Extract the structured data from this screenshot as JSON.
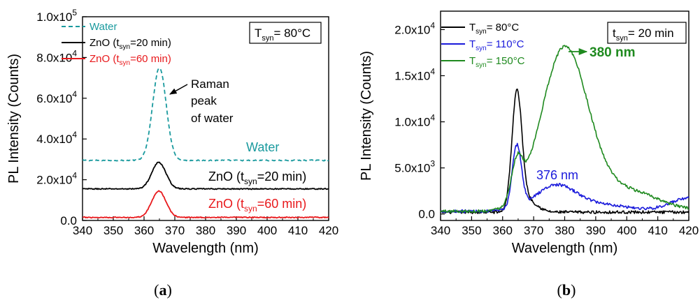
{
  "chart_data": [
    {
      "id": "a",
      "type": "line",
      "caption": "(a)",
      "xlabel": "Wavelength (nm)",
      "ylabel": "PL Intensity (Counts)",
      "xlim": [
        340,
        420
      ],
      "ylim": [
        0,
        100000
      ],
      "xticks": [
        340,
        350,
        360,
        370,
        380,
        390,
        400,
        410,
        420
      ],
      "yticks": [
        {
          "value": 0,
          "label": "0.0"
        },
        {
          "value": 20000,
          "label": "2.0x10",
          "exp": "4"
        },
        {
          "value": 40000,
          "label": "4.0x10",
          "exp": "4"
        },
        {
          "value": 60000,
          "label": "6.0x10",
          "exp": "4"
        },
        {
          "value": 80000,
          "label": "8.0x10",
          "exp": "4"
        },
        {
          "value": 100000,
          "label": "1.0x10",
          "exp": "5"
        }
      ],
      "legend": [
        {
          "text": "Water",
          "color": "#1a9a9e",
          "dashed": true
        },
        {
          "pre": "ZnO (t",
          "sub": "syn",
          "post": "=20 min)",
          "color": "#000000"
        },
        {
          "pre": "ZnO (t",
          "sub": "syn",
          "post": "=60 min)",
          "color": "#e8191c"
        }
      ],
      "tag": {
        "pre": "T",
        "sub": "syn",
        "post": "= 80°C"
      },
      "series": [
        {
          "name": "Water",
          "color": "#1a9a9e",
          "dashed": true,
          "baseline": 29500,
          "peaks": [
            [
              365,
              45500,
              2.2
            ]
          ]
        },
        {
          "name": "ZnO (tsyn=20 min)",
          "color": "#000000",
          "dashed": false,
          "baseline": 15500,
          "peaks": [
            [
              364.8,
              13000,
              2.3
            ]
          ]
        },
        {
          "name": "ZnO (tsyn=60 min)",
          "color": "#e8191c",
          "dashed": false,
          "baseline": 1500,
          "peaks": [
            [
              364.8,
              13000,
              2.3
            ]
          ]
        }
      ],
      "annotations": {
        "raman": [
          "Raman",
          "peak",
          "of water"
        ],
        "water": "Water",
        "zno20": {
          "pre": "ZnO (t",
          "sub": "syn",
          "post": "=20 min)"
        },
        "zno60": {
          "pre": "ZnO (t",
          "sub": "syn",
          "post": "=60 min)"
        }
      }
    },
    {
      "id": "b",
      "type": "line",
      "caption": "(b)",
      "xlabel": "Wavelength (nm)",
      "ylabel": "PL Intensity (Counts)",
      "xlim": [
        340,
        420
      ],
      "ylim": [
        -700,
        22000
      ],
      "xticks": [
        340,
        350,
        360,
        370,
        380,
        390,
        400,
        410,
        420
      ],
      "yticks": [
        {
          "value": 0,
          "label": "0.0"
        },
        {
          "value": 5000,
          "label": "5.0x10",
          "exp": "3"
        },
        {
          "value": 10000,
          "label": "1.0x10",
          "exp": "4"
        },
        {
          "value": 15000,
          "label": "1.5x10",
          "exp": "4"
        },
        {
          "value": 20000,
          "label": "2.0x10",
          "exp": "4"
        }
      ],
      "legend": [
        {
          "pre": "T",
          "sub": "syn",
          "post": "= 80°C",
          "color": "#000000"
        },
        {
          "pre": "T",
          "sub": "syn",
          "post": "= 110°C",
          "color": "#1a1adb"
        },
        {
          "pre": "T",
          "sub": "syn",
          "post": "= 150°C",
          "color": "#1f8a1f"
        }
      ],
      "tag": {
        "pre": "t",
        "sub": "syn",
        "post": "= 20 min"
      },
      "series": [
        {
          "name": "Tsyn = 80°C",
          "color": "#000000",
          "baseline": 200,
          "peaks": [
            [
              364.6,
              12600,
              1.6
            ],
            [
              368,
              1300,
              3
            ]
          ]
        },
        {
          "name": "Tsyn = 110°C",
          "color": "#1a1adb",
          "baseline": 300,
          "peaks": [
            [
              364.6,
              6800,
              1.5
            ],
            [
              377,
              2700,
              6.5
            ],
            [
              392,
              700,
              9
            ],
            [
              420,
              1400,
              6
            ]
          ]
        },
        {
          "name": "Tsyn = 150°C",
          "color": "#1f8a1f",
          "baseline": 300,
          "peaks": [
            [
              364.6,
              4000,
              1.8
            ],
            [
              380,
              17600,
              7.5
            ],
            [
              400,
              2200,
              10
            ]
          ]
        }
      ],
      "annotations": {
        "p380": "380 nm",
        "p376": "376 nm"
      }
    }
  ]
}
